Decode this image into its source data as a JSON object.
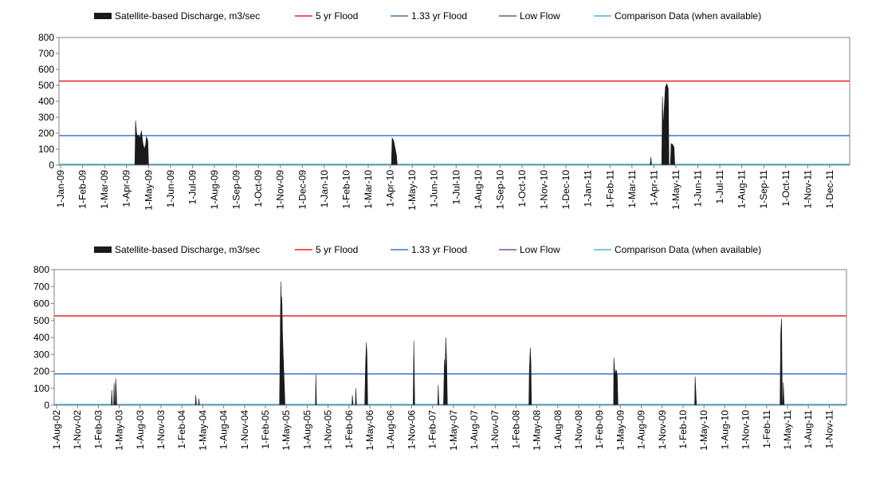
{
  "colors": {
    "discharge": "#1a1a1a",
    "flood5": "#e8231f",
    "flood133": "#3a78c4",
    "lowflow": "#7b4f9d",
    "comparison": "#4ab3d6",
    "axis": "#808080"
  },
  "chart_data": [
    {
      "type": "area",
      "legend": [
        "Satellite-based Discharge, m3/sec",
        "5 yr Flood",
        "1.33 yr Flood",
        "Low Flow",
        "Comparison Data (when available)"
      ],
      "legend_position": "top",
      "ylim": [
        0,
        800
      ],
      "yticks": [
        "800",
        "700",
        "600",
        "500",
        "400",
        "300",
        "200",
        "100",
        "0"
      ],
      "xlim": [
        "2009-01-01",
        "2011-12-31"
      ],
      "xticks": [
        "1-Jan-09",
        "1-Feb-09",
        "1-Mar-09",
        "1-Apr-09",
        "1-May-09",
        "1-Jun-09",
        "1-Jul-09",
        "1-Aug-09",
        "1-Sep-09",
        "1-Oct-09",
        "1-Nov-09",
        "1-Dec-09",
        "1-Jan-10",
        "1-Feb-10",
        "1-Mar-10",
        "1-Apr-10",
        "1-May-10",
        "1-Jun-10",
        "1-Jul-10",
        "1-Aug-10",
        "1-Sep-10",
        "1-Oct-10",
        "1-Nov-10",
        "1-Dec-10",
        "1-Jan-11",
        "1-Feb-11",
        "1-Mar-11",
        "1-Apr-11",
        "1-May-11",
        "1-Jun-11",
        "1-Jul-11",
        "1-Aug-11",
        "1-Sep-11",
        "1-Oct-11",
        "1-Nov-11",
        "1-Dec-11"
      ],
      "thresholds": {
        "flood5": 527,
        "flood133": 185,
        "lowflow": 0
      },
      "series": [
        {
          "name": "Satellite-based Discharge, m3/sec",
          "points": [
            [
              "2009-04-16",
              0
            ],
            [
              "2009-04-17",
              280
            ],
            [
              "2009-04-18",
              220
            ],
            [
              "2009-04-19",
              180
            ],
            [
              "2009-04-21",
              190
            ],
            [
              "2009-04-23",
              170
            ],
            [
              "2009-04-25",
              215
            ],
            [
              "2009-04-27",
              140
            ],
            [
              "2009-04-29",
              100
            ],
            [
              "2009-05-01",
              130
            ],
            [
              "2009-05-02",
              180
            ],
            [
              "2009-05-04",
              150
            ],
            [
              "2009-05-05",
              0
            ],
            [
              "2010-04-06",
              0
            ],
            [
              "2010-04-07",
              170
            ],
            [
              "2010-04-09",
              155
            ],
            [
              "2010-04-11",
              110
            ],
            [
              "2010-04-13",
              60
            ],
            [
              "2010-04-14",
              0
            ],
            [
              "2011-03-30",
              0
            ],
            [
              "2011-03-31",
              50
            ],
            [
              "2011-04-01",
              0
            ],
            [
              "2011-04-15",
              0
            ],
            [
              "2011-04-16",
              430
            ],
            [
              "2011-04-17",
              240
            ],
            [
              "2011-04-18",
              330
            ],
            [
              "2011-04-20",
              490
            ],
            [
              "2011-04-22",
              510
            ],
            [
              "2011-04-24",
              480
            ],
            [
              "2011-04-25",
              0
            ],
            [
              "2011-04-27",
              0
            ],
            [
              "2011-04-28",
              135
            ],
            [
              "2011-04-30",
              130
            ],
            [
              "2011-05-02",
              110
            ],
            [
              "2011-05-03",
              0
            ]
          ]
        }
      ]
    },
    {
      "type": "area",
      "legend": [
        "Satellite-based Discharge, m3/sec",
        "5 yr Flood",
        "1.33 yr Flood",
        "Low Flow",
        "Comparison Data (when available)"
      ],
      "legend_position": "top",
      "ylim": [
        0,
        800
      ],
      "yticks": [
        "800",
        "700",
        "600",
        "500",
        "400",
        "300",
        "200",
        "100",
        "0"
      ],
      "xlim": [
        "2002-08-01",
        "2012-01-31"
      ],
      "xticks": [
        "1-Aug-02",
        "1-Nov-02",
        "1-Feb-03",
        "1-May-03",
        "1-Aug-03",
        "1-Nov-03",
        "1-Feb-04",
        "1-May-04",
        "1-Aug-04",
        "1-Nov-04",
        "1-Feb-05",
        "1-May-05",
        "1-Aug-05",
        "1-Nov-05",
        "1-Feb-06",
        "1-May-06",
        "1-Aug-06",
        "1-Nov-06",
        "1-Feb-07",
        "1-May-07",
        "1-Aug-07",
        "1-Nov-07",
        "1-Feb-08",
        "1-May-08",
        "1-Aug-08",
        "1-Nov-08",
        "1-Feb-09",
        "1-May-09",
        "1-Aug-09",
        "1-Nov-09",
        "1-Feb-10",
        "1-May-10",
        "1-Aug-10",
        "1-Nov-10",
        "1-Feb-11",
        "1-May-11",
        "1-Aug-11",
        "1-Nov-11"
      ],
      "thresholds": {
        "flood5": 527,
        "flood133": 185,
        "lowflow": 0
      },
      "series": [
        {
          "name": "Satellite-based Discharge, m3/sec",
          "points": [
            [
              "2003-04-08",
              0
            ],
            [
              "2003-04-10",
              90
            ],
            [
              "2003-04-13",
              0
            ],
            [
              "2003-04-18",
              0
            ],
            [
              "2003-04-20",
              130
            ],
            [
              "2003-04-23",
              0
            ],
            [
              "2003-04-25",
              0
            ],
            [
              "2003-04-27",
              160
            ],
            [
              "2003-04-30",
              90
            ],
            [
              "2003-05-02",
              0
            ],
            [
              "2004-04-10",
              0
            ],
            [
              "2004-04-12",
              60
            ],
            [
              "2004-04-15",
              0
            ],
            [
              "2004-04-24",
              0
            ],
            [
              "2004-04-26",
              40
            ],
            [
              "2004-04-28",
              0
            ],
            [
              "2005-04-14",
              0
            ],
            [
              "2005-04-18",
              560
            ],
            [
              "2005-04-20",
              730
            ],
            [
              "2005-04-22",
              520
            ],
            [
              "2005-04-24",
              640
            ],
            [
              "2005-04-27",
              420
            ],
            [
              "2005-04-30",
              300
            ],
            [
              "2005-05-04",
              150
            ],
            [
              "2005-05-08",
              0
            ],
            [
              "2005-09-18",
              0
            ],
            [
              "2005-09-20",
              180
            ],
            [
              "2005-09-23",
              0
            ],
            [
              "2006-02-25",
              0
            ],
            [
              "2006-02-27",
              60
            ],
            [
              "2006-03-02",
              0
            ],
            [
              "2006-03-12",
              0
            ],
            [
              "2006-03-14",
              100
            ],
            [
              "2006-03-17",
              0
            ],
            [
              "2006-04-22",
              0
            ],
            [
              "2006-04-26",
              250
            ],
            [
              "2006-04-29",
              370
            ],
            [
              "2006-05-02",
              300
            ],
            [
              "2006-05-05",
              0
            ],
            [
              "2006-11-20",
              0
            ],
            [
              "2006-11-23",
              380
            ],
            [
              "2006-11-27",
              0
            ],
            [
              "2007-03-08",
              0
            ],
            [
              "2007-03-10",
              120
            ],
            [
              "2007-03-13",
              0
            ],
            [
              "2007-04-02",
              0
            ],
            [
              "2007-04-06",
              270
            ],
            [
              "2007-04-09",
              180
            ],
            [
              "2007-04-12",
              400
            ],
            [
              "2007-04-16",
              250
            ],
            [
              "2007-04-19",
              0
            ],
            [
              "2008-04-10",
              0
            ],
            [
              "2008-04-12",
              200
            ],
            [
              "2008-04-16",
              340
            ],
            [
              "2008-04-19",
              250
            ],
            [
              "2008-04-21",
              0
            ],
            [
              "2009-04-16",
              0
            ],
            [
              "2009-04-17",
              280
            ],
            [
              "2009-04-22",
              180
            ],
            [
              "2009-04-27",
              210
            ],
            [
              "2009-05-02",
              180
            ],
            [
              "2009-05-05",
              0
            ],
            [
              "2010-04-06",
              0
            ],
            [
              "2010-04-08",
              170
            ],
            [
              "2010-04-14",
              0
            ],
            [
              "2011-04-15",
              0
            ],
            [
              "2011-04-18",
              430
            ],
            [
              "2011-04-22",
              510
            ],
            [
              "2011-04-25",
              0
            ],
            [
              "2011-04-27",
              0
            ],
            [
              "2011-04-29",
              135
            ],
            [
              "2011-05-03",
              0
            ]
          ]
        }
      ]
    }
  ]
}
